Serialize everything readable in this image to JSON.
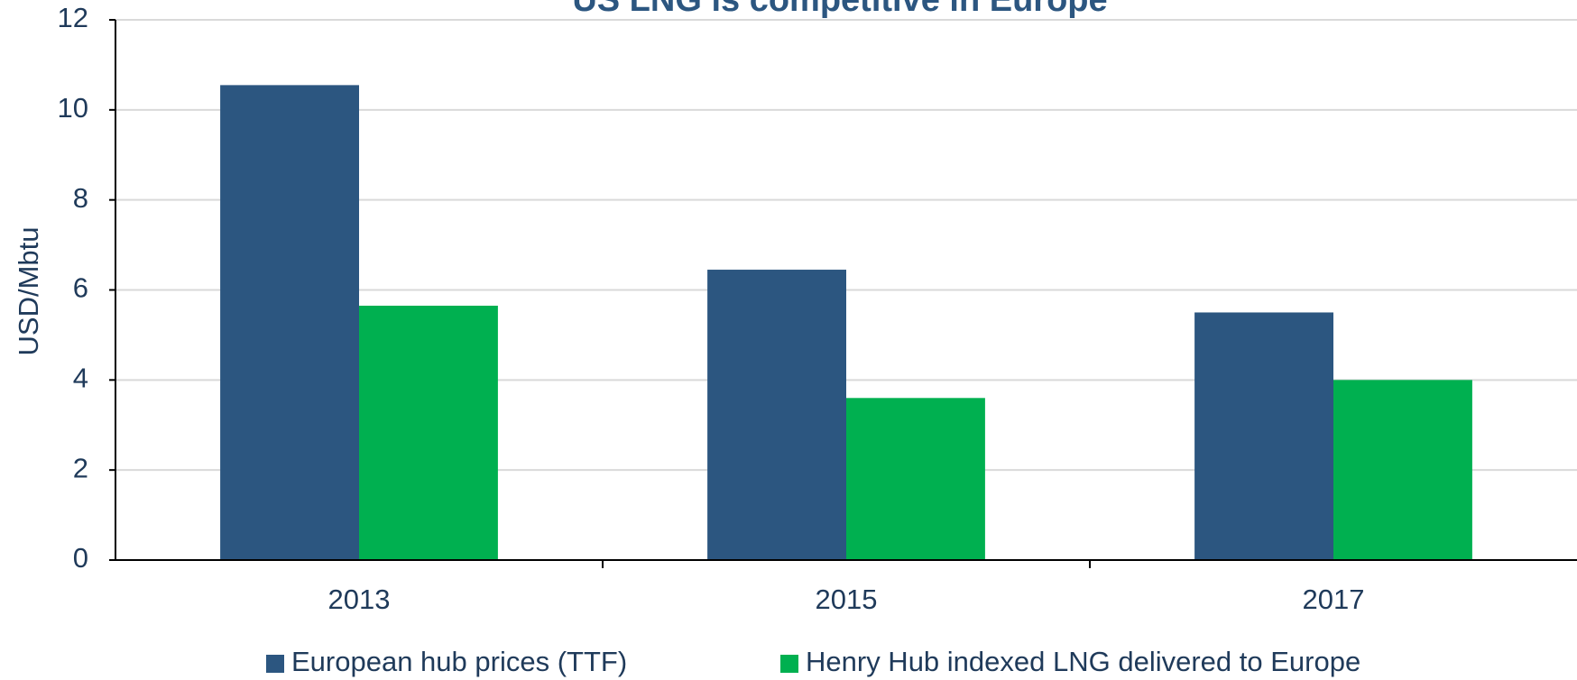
{
  "chart_data": {
    "type": "bar",
    "title": "US LNG is competitive in Europe",
    "y_label": "USD/Mbtu",
    "categories": [
      "2013",
      "2015",
      "2017"
    ],
    "series": [
      {
        "name": "European hub prices (TTF)",
        "color": "#2c5680",
        "values": [
          10.55,
          6.45,
          5.5
        ]
      },
      {
        "name": "Henry Hub indexed LNG delivered to Europe",
        "color": "#00b050",
        "values": [
          5.65,
          3.6,
          4.0
        ]
      }
    ],
    "ylim": [
      0,
      12
    ],
    "yticks": [
      0,
      2,
      4,
      6,
      8,
      10,
      12
    ],
    "grid": true,
    "legend": "bottom"
  }
}
